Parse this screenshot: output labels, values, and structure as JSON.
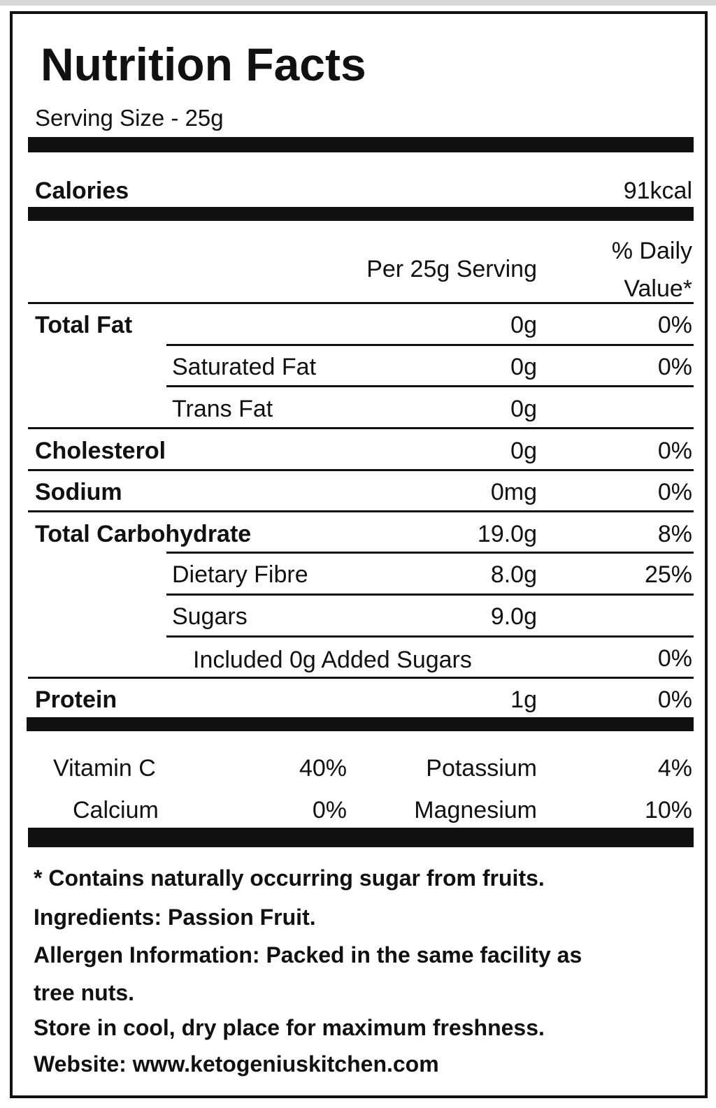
{
  "title": "Nutrition Facts",
  "serving_size": "Serving Size - 25g",
  "calories": {
    "label": "Calories",
    "value": "91kcal"
  },
  "header": {
    "per_serving": "Per 25g Serving",
    "daily_value_line1": "% Daily",
    "daily_value_line2": "Value*"
  },
  "rows": [
    {
      "label": "Total Fat",
      "amount": "0g",
      "dv": "0%"
    },
    {
      "label": "Saturated Fat",
      "amount": "0g",
      "dv": "0%"
    },
    {
      "label": "Trans Fat",
      "amount": "0g",
      "dv": ""
    },
    {
      "label": "Cholesterol",
      "amount": "0g",
      "dv": "0%"
    },
    {
      "label": "Sodium",
      "amount": "0mg",
      "dv": "0%"
    },
    {
      "label": "Total Carbohydrate",
      "amount": "19.0g",
      "dv": "8%"
    },
    {
      "label": "Dietary Fibre",
      "amount": "8.0g",
      "dv": "25%"
    },
    {
      "label": "Sugars",
      "amount": "9.0g",
      "dv": ""
    },
    {
      "label": "Included 0g Added Sugars",
      "amount": "",
      "dv": "0%"
    },
    {
      "label": "Protein",
      "amount": "1g",
      "dv": "0%"
    }
  ],
  "vitamins": [
    {
      "name": "Vitamin C",
      "value": "40%"
    },
    {
      "name": "Potassium",
      "value": "4%"
    },
    {
      "name": "Calcium",
      "value": "0%"
    },
    {
      "name": "Magnesium",
      "value": "10%"
    }
  ],
  "footnotes": [
    "* Contains naturally occurring sugar from fruits.",
    "Ingredients: Passion Fruit.",
    "Allergen Information: Packed in the same facility as",
    "tree nuts.",
    "Store in cool, dry place for maximum freshness.",
    "Website: www.ketogeniuskitchen.com"
  ]
}
